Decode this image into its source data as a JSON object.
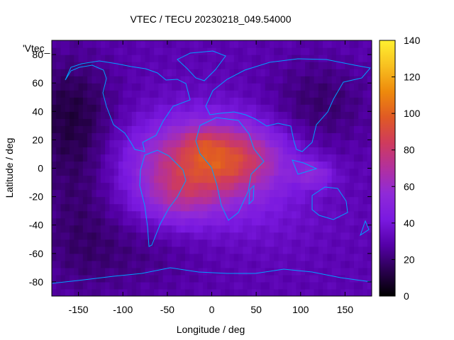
{
  "chart_data": {
    "type": "heatmap",
    "title": "VTEC / TECU 20230218_049.54000",
    "series_label": "'Vtec_",
    "xlabel": "Longitude / deg",
    "ylabel": "Latitude / deg",
    "xlim": [
      -180,
      180
    ],
    "ylim": [
      -90,
      90
    ],
    "x_ticks": [
      -150,
      -100,
      -50,
      0,
      50,
      100,
      150
    ],
    "y_ticks": [
      -80,
      -60,
      -40,
      -20,
      0,
      20,
      40,
      60,
      80
    ],
    "colorbar": {
      "range": [
        0,
        140
      ],
      "ticks": [
        0,
        20,
        40,
        60,
        80,
        100,
        120,
        140
      ],
      "palette": [
        "#000000",
        "#2a0050",
        "#5500a8",
        "#7a19e0",
        "#8f2ad8",
        "#b2309e",
        "#cf3b5c",
        "#e05a24",
        "#ee8a0c",
        "#f8c020",
        "#fff030"
      ]
    },
    "features": {
      "equatorial_anomaly_peak": {
        "lon": -10,
        "lat": 18,
        "value": 110
      },
      "coastline_color": "#00a0ff"
    }
  }
}
